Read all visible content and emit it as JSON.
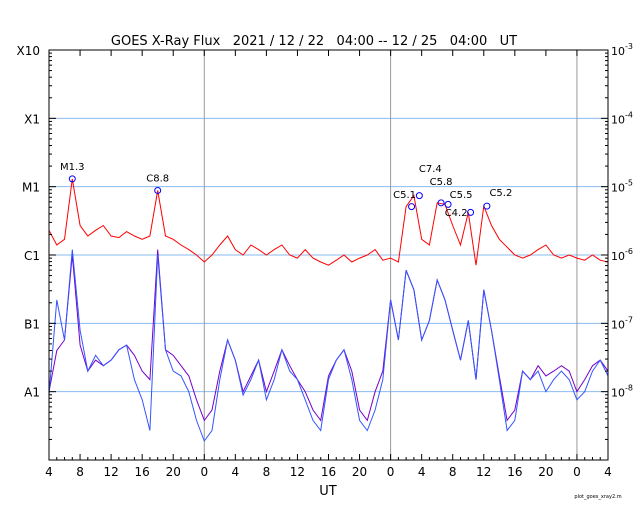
{
  "chart_data": {
    "type": "line",
    "title": "GOES X-Ray Flux   2021 / 12 / 22   04:00 -- 12 / 25   04:00   UT",
    "xlabel": "UT",
    "footnote": "plot_goes_xray2.m",
    "x_unit": "hours since 2021-12-22 04:00 UT",
    "x_range": [
      0,
      72
    ],
    "ylim": [
      1e-09,
      0.001
    ],
    "y_scale": "log",
    "grid": true,
    "x_tick_hours": [
      0,
      4,
      8,
      12,
      16,
      20,
      24,
      28,
      32,
      36,
      40,
      44,
      48,
      52,
      56,
      60,
      64,
      68,
      72
    ],
    "x_tick_labels": [
      "4",
      "8",
      "12",
      "16",
      "20",
      "0",
      "4",
      "8",
      "12",
      "16",
      "20",
      "0",
      "4",
      "8",
      "12",
      "16",
      "20",
      "0",
      "4"
    ],
    "day_boundaries": [
      20,
      44,
      68
    ],
    "left_axis_labels": [
      {
        "label": "X10",
        "value": 0.001
      },
      {
        "label": "X1",
        "value": 0.0001
      },
      {
        "label": "M1",
        "value": 1e-05
      },
      {
        "label": "C1",
        "value": 1e-06
      },
      {
        "label": "B1",
        "value": 1e-07
      },
      {
        "label": "A1",
        "value": 1e-08
      }
    ],
    "right_axis_labels": [
      {
        "base": "10",
        "exp": "-3",
        "value": 0.001
      },
      {
        "base": "10",
        "exp": "-4",
        "value": 0.0001
      },
      {
        "base": "10",
        "exp": "-5",
        "value": 1e-05
      },
      {
        "base": "10",
        "exp": "-6",
        "value": 1e-06
      },
      {
        "base": "10",
        "exp": "-7",
        "value": 1e-07
      },
      {
        "base": "10",
        "exp": "-8",
        "value": 1e-08
      }
    ],
    "colors": {
      "long": "#ff0000",
      "short": "#3355ff",
      "short2": "#7700cc",
      "grid": "#88bbee",
      "day": "#999999",
      "marker": "#0000ff"
    },
    "series": [
      {
        "name": "long",
        "color_key": "long",
        "values": [
          2.3e-06,
          1.4e-06,
          1.7e-06,
          1.3e-05,
          2.7e-06,
          1.9e-06,
          2.3e-06,
          2.7e-06,
          1.9e-06,
          1.8e-06,
          2.2e-06,
          1.9e-06,
          1.7e-06,
          1.9e-06,
          8.8e-06,
          1.9e-06,
          1.7e-06,
          1.4e-06,
          1.2e-06,
          1e-06,
          7.9e-07,
          1e-06,
          1.4e-06,
          1.9e-06,
          1.2e-06,
          1e-06,
          1.4e-06,
          1.2e-06,
          1e-06,
          1.2e-06,
          1.4e-06,
          1e-06,
          9e-07,
          1.2e-06,
          9e-07,
          7.9e-07,
          7.1e-07,
          8.4e-07,
          1e-06,
          7.9e-07,
          9e-07,
          1e-06,
          1.2e-06,
          8.4e-07,
          9e-07,
          7.9e-07,
          5.1e-06,
          7.4e-06,
          1.7e-06,
          1.4e-06,
          5.8e-06,
          5.5e-06,
          2.7e-06,
          1.4e-06,
          4.2e-06,
          7.1e-07,
          5.2e-06,
          2.7e-06,
          1.7e-06,
          1.3e-06,
          1e-06,
          9e-07,
          1e-06,
          1.2e-06,
          1.4e-06,
          1e-06,
          9e-07,
          1e-06,
          9e-07,
          8.4e-07,
          1e-06,
          8.4e-07,
          7.9e-07
        ]
      },
      {
        "name": "short2",
        "color_key": "short2",
        "values": [
          1e-08,
          4e-08,
          5.7e-08,
          1e-06,
          4.8e-08,
          2e-08,
          2.9e-08,
          2.4e-08,
          2.9e-08,
          4.1e-08,
          4.8e-08,
          3.4e-08,
          2e-08,
          1.5e-08,
          1.2e-06,
          4.1e-08,
          3.4e-08,
          2.4e-08,
          1.7e-08,
          7.6e-09,
          3.8e-09,
          5.4e-09,
          2e-08,
          5.7e-08,
          2.9e-08,
          1e-08,
          1.7e-08,
          2.9e-08,
          1e-08,
          2e-08,
          4.1e-08,
          2.4e-08,
          1.5e-08,
          1e-08,
          5.4e-09,
          3.8e-09,
          1.7e-08,
          2.9e-08,
          4.1e-08,
          2e-08,
          5.4e-09,
          3.8e-09,
          1e-08,
          2e-08,
          2.2e-07,
          5.7e-08,
          6e-07,
          3.1e-07,
          5.7e-08,
          1.1e-07,
          4.3e-07,
          2.2e-07,
          7.9e-08,
          2.9e-08,
          1.1e-07,
          1.5e-08,
          3.1e-07,
          7.9e-08,
          1.7e-08,
          3.8e-09,
          5.4e-09,
          2e-08,
          1.5e-08,
          2.4e-08,
          1.7e-08,
          2e-08,
          2.4e-08,
          2e-08,
          1e-08,
          1.5e-08,
          2.4e-08,
          2.9e-08,
          2e-08
        ]
      },
      {
        "name": "short",
        "color_key": "short",
        "values": [
          8.9e-09,
          2.2e-07,
          5.7e-08,
          1.2e-06,
          7.9e-08,
          2e-08,
          3.4e-08,
          2.4e-08,
          2.9e-08,
          4.1e-08,
          4.8e-08,
          1.5e-08,
          7.6e-09,
          2.7e-09,
          1e-06,
          4.1e-08,
          2e-08,
          1.7e-08,
          1e-08,
          3.8e-09,
          1.9e-09,
          2.7e-09,
          1.5e-08,
          5.7e-08,
          2.9e-08,
          8.9e-09,
          1.5e-08,
          2.9e-08,
          7.6e-09,
          1.5e-08,
          4.1e-08,
          2e-08,
          1.5e-08,
          7.6e-09,
          3.8e-09,
          2.7e-09,
          1.5e-08,
          2.9e-08,
          4.1e-08,
          1.5e-08,
          3.8e-09,
          2.7e-09,
          5.4e-09,
          1.5e-08,
          2.2e-07,
          5.7e-08,
          6e-07,
          3.1e-07,
          5.7e-08,
          1.1e-07,
          4.3e-07,
          2.2e-07,
          7.9e-08,
          2.9e-08,
          1.1e-07,
          1.5e-08,
          3.1e-07,
          7.9e-08,
          1.5e-08,
          2.7e-09,
          3.8e-09,
          2e-08,
          1.5e-08,
          2e-08,
          1e-08,
          1.5e-08,
          2e-08,
          1.5e-08,
          7.6e-09,
          1e-08,
          2e-08,
          2.9e-08,
          1.7e-08
        ]
      }
    ],
    "flares": [
      {
        "label": "M1.3",
        "hour": 3.0,
        "flux": 1.3e-05
      },
      {
        "label": "C8.8",
        "hour": 14.0,
        "flux": 8.8e-06
      },
      {
        "label": "C5.1",
        "hour": 46.7,
        "flux": 5.1e-06
      },
      {
        "label": "C7.4",
        "hour": 47.7,
        "flux": 7.4e-06
      },
      {
        "label": "C5.8",
        "hour": 50.5,
        "flux": 5.8e-06
      },
      {
        "label": "C5.5",
        "hour": 51.4,
        "flux": 5.5e-06
      },
      {
        "label": "C4.2",
        "hour": 54.3,
        "flux": 4.2e-06
      },
      {
        "label": "C5.2",
        "hour": 56.4,
        "flux": 5.2e-06
      }
    ]
  }
}
